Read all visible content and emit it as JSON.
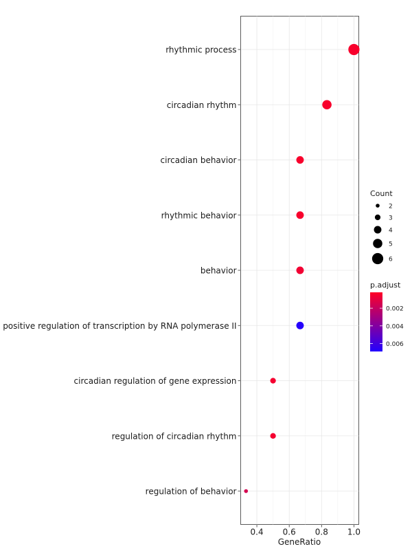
{
  "chart_data": {
    "type": "scatter",
    "xlabel": "GeneRatio",
    "ylabel": "",
    "xlim": [
      0.3,
      1.03
    ],
    "xticks": [
      "0.4",
      "0.6",
      "0.8",
      "1.0"
    ],
    "xtick_values": [
      0.4,
      0.6,
      0.8,
      1.0
    ],
    "grid": true,
    "legend_position": "right",
    "categories": [
      "rhythmic process",
      "circadian rhythm",
      "circadian behavior",
      "rhythmic behavior",
      "behavior",
      "positive regulation of transcription by RNA polymerase II",
      "circadian regulation of gene expression",
      "regulation of circadian rhythm",
      "regulation of behavior"
    ],
    "points": [
      {
        "term": "rhythmic process",
        "gene_ratio": 1.0,
        "count": 6,
        "p_adjust": 0.0004
      },
      {
        "term": "circadian rhythm",
        "gene_ratio": 0.833,
        "count": 5,
        "p_adjust": 0.0004
      },
      {
        "term": "circadian behavior",
        "gene_ratio": 0.667,
        "count": 4,
        "p_adjust": 0.0004
      },
      {
        "term": "rhythmic behavior",
        "gene_ratio": 0.667,
        "count": 4,
        "p_adjust": 0.0004
      },
      {
        "term": "behavior",
        "gene_ratio": 0.667,
        "count": 4,
        "p_adjust": 0.0006
      },
      {
        "term": "positive regulation of transcription by RNA polymerase II",
        "gene_ratio": 0.667,
        "count": 4,
        "p_adjust": 0.0068
      },
      {
        "term": "circadian regulation of gene expression",
        "gene_ratio": 0.5,
        "count": 3,
        "p_adjust": 0.0005
      },
      {
        "term": "regulation of circadian rhythm",
        "gene_ratio": 0.5,
        "count": 3,
        "p_adjust": 0.0005
      },
      {
        "term": "regulation of behavior",
        "gene_ratio": 0.333,
        "count": 2,
        "p_adjust": 0.0015
      }
    ],
    "size_legend": {
      "title": "Count",
      "values": [
        2,
        3,
        4,
        5,
        6
      ],
      "labels": [
        "2",
        "3",
        "4",
        "5",
        "6"
      ]
    },
    "color_legend": {
      "title": "p.adjust",
      "range": [
        0.0002,
        0.0069
      ],
      "ticks": [
        0.002,
        0.004,
        0.006
      ],
      "labels": [
        "0.002",
        "0.004",
        "0.006"
      ],
      "low_color": "#ff0026",
      "high_color": "#2200ff"
    }
  }
}
